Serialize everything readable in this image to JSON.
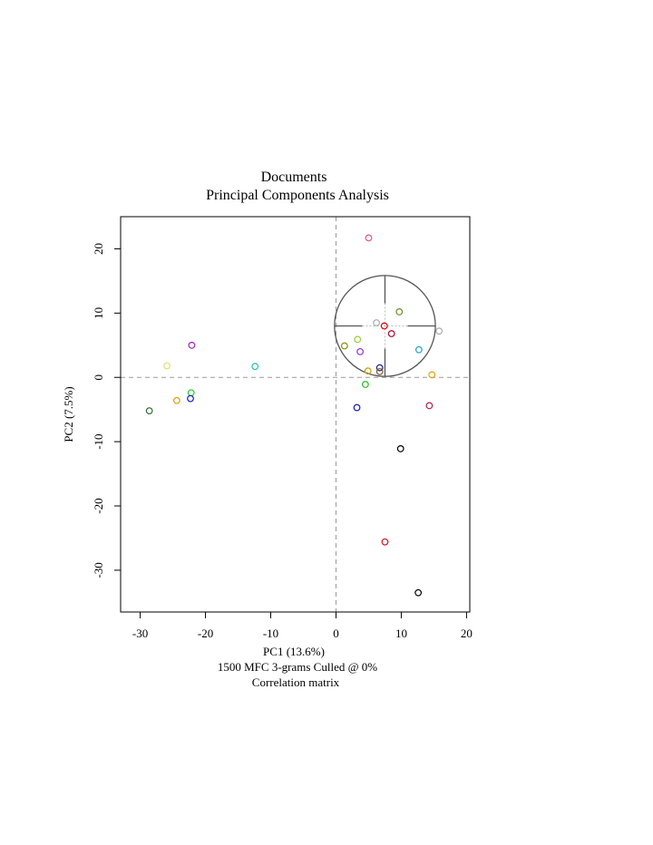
{
  "chart_data": {
    "type": "scatter",
    "title": "Documents",
    "subtitle": "Principal Components Analysis",
    "xlabel": "PC1 (13.6%)",
    "xsub1": "1500 MFC 3-grams Culled @ 0%",
    "xsub2": "Correlation matrix",
    "ylabel": "PC2 (7.5%)",
    "xlim": [
      -33,
      20.5
    ],
    "ylim": [
      -36.5,
      25
    ],
    "xticks": [
      -30,
      -20,
      -10,
      0,
      10,
      20
    ],
    "yticks": [
      -30,
      -20,
      -10,
      0,
      10,
      20
    ],
    "xtick_labels": [
      "-30",
      "-20",
      "-10",
      "0",
      "10",
      "20"
    ],
    "ytick_labels": [
      "-30",
      "-20",
      "-10",
      "0",
      "10",
      "20"
    ],
    "reference_lines": {
      "x": 0,
      "y": 0
    },
    "points": [
      {
        "x": 5.0,
        "y": 21.7,
        "color": "#e75480"
      },
      {
        "x": 9.7,
        "y": 10.2,
        "color": "#6b8e23"
      },
      {
        "x": 6.2,
        "y": 8.5,
        "color": "#aaaaaa"
      },
      {
        "x": 7.4,
        "y": 8.0,
        "color": "#e00000"
      },
      {
        "x": 8.5,
        "y": 6.8,
        "color": "#b0002a"
      },
      {
        "x": 15.8,
        "y": 7.2,
        "color": "#aaaaaa"
      },
      {
        "x": 3.3,
        "y": 5.9,
        "color": "#9acd32"
      },
      {
        "x": 1.3,
        "y": 4.9,
        "color": "#8b8b00"
      },
      {
        "x": 3.7,
        "y": 4.0,
        "color": "#9932cc"
      },
      {
        "x": 12.7,
        "y": 4.3,
        "color": "#1fa0d0"
      },
      {
        "x": 6.7,
        "y": 1.5,
        "color": "#1a1a8c"
      },
      {
        "x": 4.9,
        "y": 1.0,
        "color": "#c8a000"
      },
      {
        "x": 6.7,
        "y": 0.9,
        "color": "#7a5c2e"
      },
      {
        "x": 14.7,
        "y": 0.4,
        "color": "#e6a000"
      },
      {
        "x": 4.5,
        "y": -1.1,
        "color": "#22bb22"
      },
      {
        "x": 3.2,
        "y": -4.7,
        "color": "#1515c0"
      },
      {
        "x": 14.3,
        "y": -4.4,
        "color": "#b0204a"
      },
      {
        "x": 9.9,
        "y": -11.1,
        "color": "#000000"
      },
      {
        "x": 7.5,
        "y": -25.6,
        "color": "#d01020"
      },
      {
        "x": 12.6,
        "y": -33.5,
        "color": "#000000"
      },
      {
        "x": -22.1,
        "y": 5.0,
        "color": "#a020c0"
      },
      {
        "x": -25.9,
        "y": 1.8,
        "color": "#e0e070"
      },
      {
        "x": -12.4,
        "y": 1.7,
        "color": "#20c0b0"
      },
      {
        "x": -22.2,
        "y": -2.4,
        "color": "#22cc22"
      },
      {
        "x": -22.3,
        "y": -3.3,
        "color": "#1515d0"
      },
      {
        "x": -24.4,
        "y": -3.6,
        "color": "#e09a00"
      },
      {
        "x": -28.6,
        "y": -5.2,
        "color": "#2e6b2e"
      }
    ],
    "crosshair": {
      "x": 7.5,
      "y": 8.0,
      "rx": 6.4,
      "ry": 9.2
    }
  }
}
